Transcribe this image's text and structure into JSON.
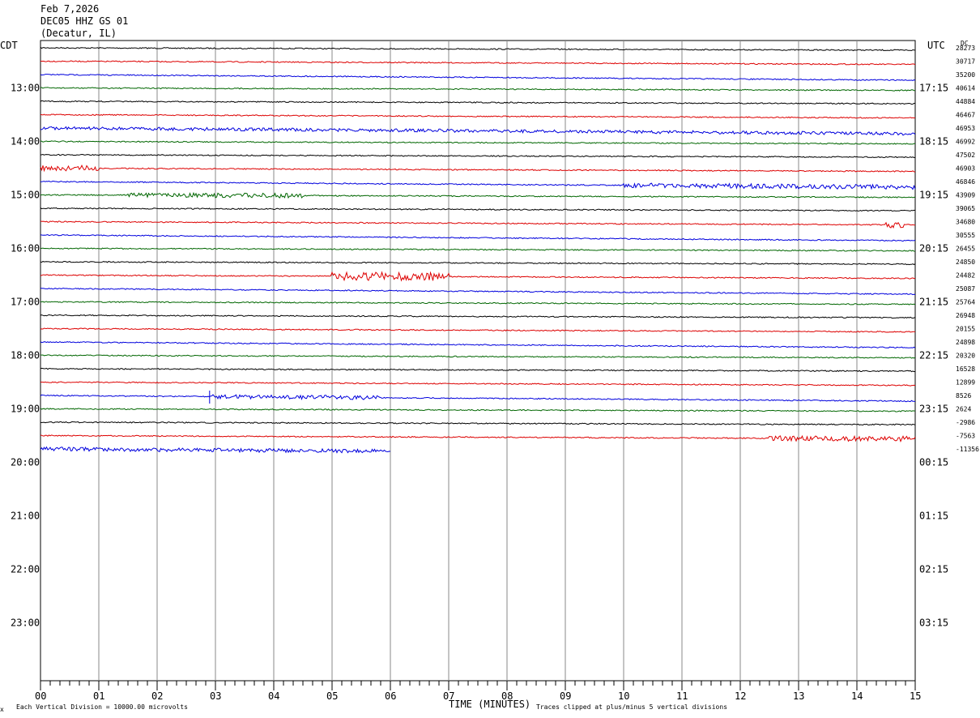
{
  "header": {
    "date": "Feb 7,2026",
    "station": "DEC05 HHZ GS 01",
    "location": "(Decatur, IL)"
  },
  "left_tz": "CDT",
  "right_tz": "UTC",
  "dc_label": "DC",
  "footer": {
    "scale_note": "Each Vertical Division = 10000.00 microvolts",
    "xlabel": "TIME (MINUTES)",
    "clip_note": "Traces clipped at plus/minus 5 vertical divisions"
  },
  "trace_colors": [
    "#000000",
    "#dd0000",
    "#0000dd",
    "#006600"
  ],
  "chart_data": {
    "type": "line",
    "title": "DEC05 HHZ GS 01",
    "xlabel": "TIME (MINUTES)",
    "xlim": [
      0,
      15
    ],
    "x_ticks": [
      "00",
      "01",
      "02",
      "03",
      "04",
      "05",
      "06",
      "07",
      "08",
      "09",
      "10",
      "11",
      "12",
      "13",
      "14",
      "15"
    ],
    "rows_per_hour": 4,
    "minutes_per_row": 15,
    "cdt_hour_labels": [
      "13:00",
      "14:00",
      "15:00",
      "16:00",
      "17:00",
      "18:00",
      "19:00",
      "20:00",
      "21:00",
      "22:00",
      "23:00"
    ],
    "utc_hour_labels": [
      "17:15",
      "18:15",
      "19:15",
      "20:15",
      "21:15",
      "22:15",
      "23:15",
      "00:15",
      "01:15",
      "02:15",
      "03:15"
    ],
    "dc_offsets": [
      "28273",
      "30717",
      "35200",
      "40614",
      "44884",
      "46467",
      "46953",
      "46992",
      "47502",
      "46903",
      "46846",
      "43909",
      "39065",
      "34680",
      "30555",
      "26455",
      "24850",
      "24482",
      "25087",
      "25764",
      "26948",
      "20155",
      "24898",
      "20320",
      "16528",
      "12899",
      "8526",
      "2624",
      "-2986",
      "-7563",
      "-11356"
    ],
    "last_trace_minutes": 6.0,
    "trace_count": 31
  }
}
